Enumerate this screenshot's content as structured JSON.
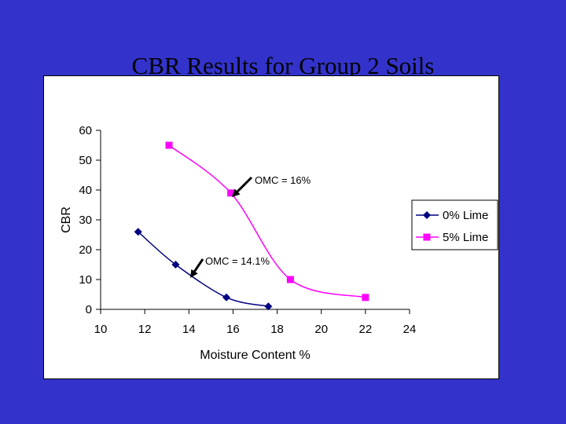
{
  "slide": {
    "background": "#3333cc"
  },
  "chart_data": {
    "type": "line",
    "title": "CBR Results for Group 2 Soils",
    "xlabel": "Moisture Content %",
    "ylabel": "CBR",
    "xlim": [
      10,
      24
    ],
    "ylim": [
      0,
      60
    ],
    "xticks": [
      10,
      12,
      14,
      16,
      18,
      20,
      22,
      24
    ],
    "yticks": [
      0,
      10,
      20,
      30,
      40,
      50,
      60
    ],
    "grid": false,
    "legend_position": "right",
    "series": [
      {
        "name": "0% Lime",
        "color": "#000080",
        "marker": "diamond",
        "points": [
          {
            "x": 11.7,
            "y": 26
          },
          {
            "x": 13.4,
            "y": 15
          },
          {
            "x": 15.7,
            "y": 4
          },
          {
            "x": 17.6,
            "y": 1
          }
        ]
      },
      {
        "name": "5% Lime",
        "color": "#ff00ff",
        "marker": "square",
        "points": [
          {
            "x": 13.1,
            "y": 55
          },
          {
            "x": 15.9,
            "y": 39
          },
          {
            "x": 18.6,
            "y": 10
          },
          {
            "x": 22.0,
            "y": 4
          }
        ]
      }
    ],
    "annotations": [
      {
        "text": "OMC = 16%",
        "arrow_to_x": 16,
        "arrow_to_y": 38
      },
      {
        "text": "OMC = 14.1%",
        "arrow_to_x": 14.1,
        "arrow_to_y": 11
      }
    ]
  }
}
